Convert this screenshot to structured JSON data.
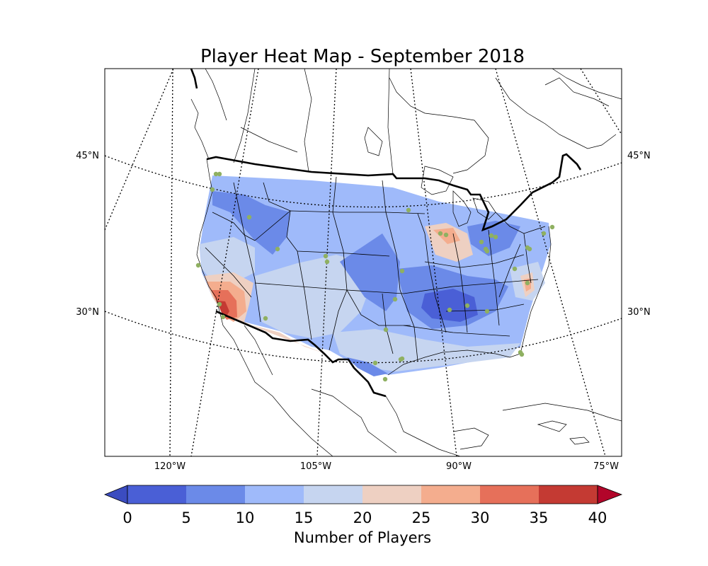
{
  "title": "Player Heat Map - September 2018",
  "map": {
    "projection": "lambert-conformal",
    "latitude_labels": [
      "45°N",
      "30°N"
    ],
    "longitude_labels": [
      "120°W",
      "105°W",
      "90°W",
      "75°W"
    ],
    "gridlines": "dotted"
  },
  "colorbar": {
    "label": "Number of Players",
    "ticks": [
      "0",
      "5",
      "10",
      "15",
      "20",
      "25",
      "30",
      "35",
      "40"
    ],
    "extend": "both",
    "colors": [
      "#4a5fd6",
      "#6b8ae8",
      "#9fbafa",
      "#c6d5f0",
      "#eed0c2",
      "#f4ad8e",
      "#e6705a",
      "#c43a33",
      "#b2052a"
    ],
    "under_color": "#3b4cc0"
  },
  "colors": {
    "observation_dot": "#8fb061",
    "country_border": "#000000",
    "state_border": "#000000"
  },
  "chart_data": {
    "type": "heatmap",
    "title": "Player Heat Map - September 2018",
    "colorbar_label": "Number of Players",
    "levels": [
      0,
      5,
      10,
      15,
      20,
      25,
      30,
      35,
      40
    ],
    "hotspots": [
      {
        "region": "Southern California",
        "level_range": [
          30,
          40
        ]
      },
      {
        "region": "Southern Arizona",
        "level_range": [
          20,
          25
        ]
      },
      {
        "region": "Southwest Texas border",
        "level_range": [
          20,
          25
        ]
      },
      {
        "region": "Chicago / Milwaukee",
        "level_range": [
          20,
          30
        ]
      },
      {
        "region": "Mid-Atlantic (Virginia)",
        "level_range": [
          20,
          25
        ]
      }
    ],
    "coldspots": [
      {
        "region": "Tennessee / Alabama",
        "level_range": [
          0,
          5
        ]
      },
      {
        "region": "Kansas / Oklahoma",
        "level_range": [
          0,
          10
        ]
      },
      {
        "region": "Idaho / Montana",
        "level_range": [
          5,
          10
        ]
      }
    ],
    "background_level_range": [
      10,
      20
    ]
  }
}
